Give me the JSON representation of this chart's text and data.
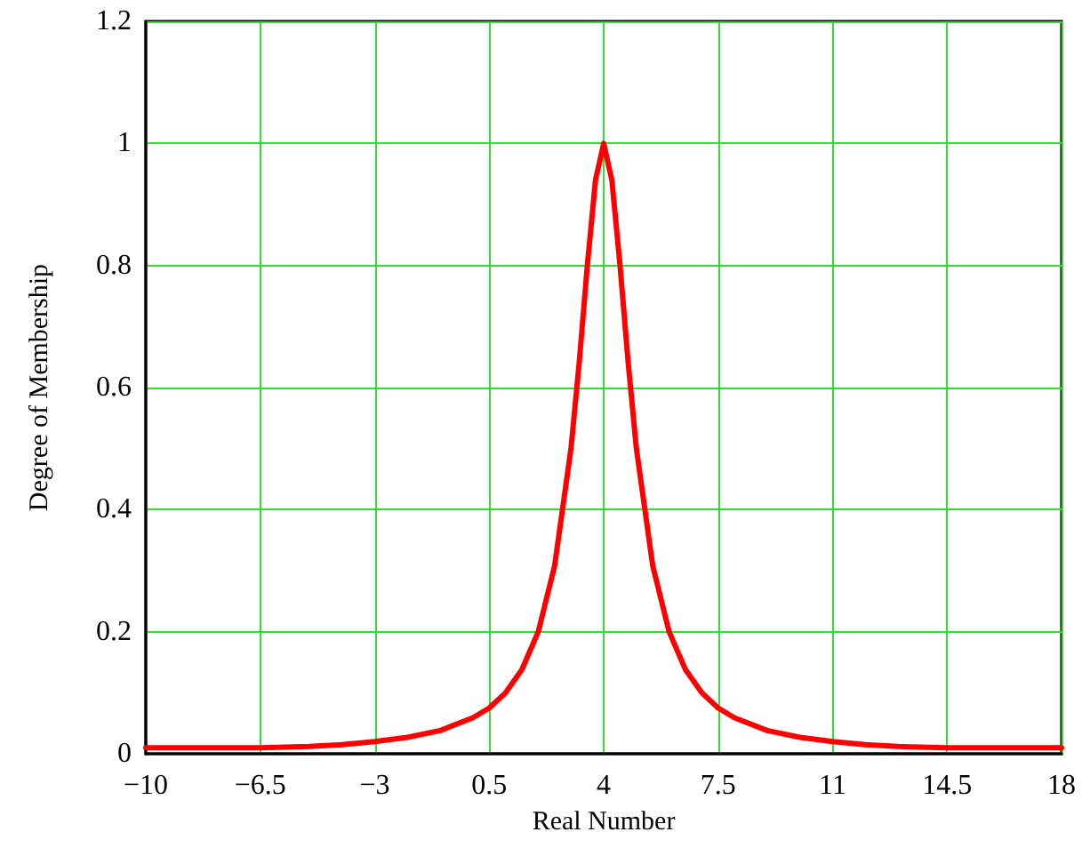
{
  "chart_data": {
    "type": "line",
    "xlabel": "Real Number",
    "ylabel": "Degree of Membership",
    "x": [
      -10,
      -8,
      -6.5,
      -5,
      -4,
      -3,
      -2,
      -1,
      0,
      0.5,
      1,
      1.5,
      2,
      2.5,
      3,
      3.25,
      3.5,
      3.75,
      4,
      4.25,
      4.5,
      4.75,
      5,
      5.5,
      6,
      6.5,
      7,
      7.5,
      8,
      9,
      10,
      11,
      12,
      13,
      14.5,
      16,
      18
    ],
    "series": [
      {
        "color": "#ff0000",
        "values": [
          0.01,
          0.01,
          0.01,
          0.012,
          0.015,
          0.02,
          0.027,
          0.038,
          0.059,
          0.075,
          0.1,
          0.138,
          0.2,
          0.308,
          0.5,
          0.64,
          0.8,
          0.94,
          1,
          0.94,
          0.8,
          0.64,
          0.5,
          0.308,
          0.2,
          0.138,
          0.1,
          0.075,
          0.059,
          0.038,
          0.027,
          0.02,
          0.015,
          0.012,
          0.01,
          0.01,
          0.01
        ]
      }
    ],
    "xlim": [
      -10,
      18
    ],
    "xticks": [
      {
        "value": -10,
        "label": "−10"
      },
      {
        "value": -6.5,
        "label": "−6.5"
      },
      {
        "value": -3,
        "label": "−3"
      },
      0.5,
      4,
      7.5,
      11,
      14.5,
      18
    ],
    "ylim": [
      0,
      1.2
    ],
    "yticks": [
      0,
      0.2,
      0.4,
      0.6,
      0.8,
      1,
      1.2
    ],
    "grid": true,
    "marker": "none",
    "line_style": "solid"
  }
}
